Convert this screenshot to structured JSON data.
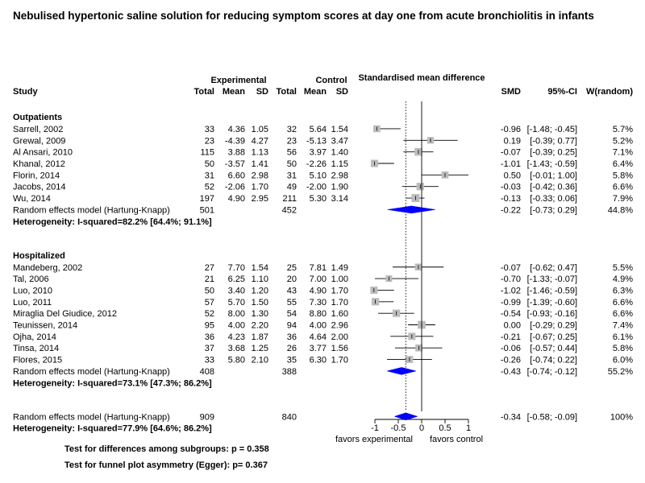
{
  "colors": {
    "text": "#000000",
    "grey": "#a0a0a0",
    "square": "#bcbcbc",
    "diamond": "#0000ff",
    "line": "#000000"
  },
  "chart_data": {
    "type": "forest",
    "title": "Nebulised hypertonic saline solution for reducing symptom scores at day one from acute bronchiolitis in infants",
    "headers": {
      "experimental": "Experimental",
      "control": "Control",
      "smd_group": "Standardised mean difference",
      "study": "Study",
      "total": "Total",
      "mean": "Mean",
      "sd": "SD",
      "smd": "SMD",
      "ci": "95%-CI",
      "weight": "W(random)"
    },
    "xaxis": {
      "ticks": [
        -1,
        -0.5,
        0,
        0.5,
        1
      ],
      "tick_labels": [
        "-1",
        "-0.5",
        "0",
        "0.5",
        "1"
      ],
      "xlim": [
        -1.0,
        1.0
      ],
      "label_left": "favors experimental",
      "label_right": "favors control",
      "reference_line": 0,
      "overall_line": -0.34
    },
    "subgroups": [
      {
        "name": "Outpatients",
        "studies": [
          {
            "study": "Sarrell, 2002",
            "e_total": "33",
            "e_mean": "4.36",
            "e_sd": "1.05",
            "c_total": "32",
            "c_mean": "5.64",
            "c_sd": "1.54",
            "smd": -0.96,
            "lo": -1.48,
            "hi": -0.45,
            "smd_txt": "-0.96",
            "ci_txt": "[-1.48; -0.45]",
            "weight": 5.7,
            "weight_txt": "5.7%"
          },
          {
            "study": "Grewal, 2009",
            "e_total": "23",
            "e_mean": "-4.39",
            "e_sd": "4.27",
            "c_total": "23",
            "c_mean": "-5.13",
            "c_sd": "3.47",
            "smd": 0.19,
            "lo": -0.39,
            "hi": 0.77,
            "smd_txt": "0.19",
            "ci_txt": "[-0.39; 0.77]",
            "weight": 5.2,
            "weight_txt": "5.2%"
          },
          {
            "study": "Al Ansari, 2010",
            "e_total": "115",
            "e_mean": "3.88",
            "e_sd": "1.13",
            "c_total": "56",
            "c_mean": "3.97",
            "c_sd": "1.40",
            "smd": -0.07,
            "lo": -0.39,
            "hi": 0.25,
            "smd_txt": "-0.07",
            "ci_txt": "[-0.39; 0.25]",
            "weight": 7.1,
            "weight_txt": "7.1%"
          },
          {
            "study": "Khanal, 2012",
            "e_total": "50",
            "e_mean": "-3.57",
            "e_sd": "1.41",
            "c_total": "50",
            "c_mean": "-2.26",
            "c_sd": "1.15",
            "smd": -1.01,
            "lo": -1.43,
            "hi": -0.59,
            "smd_txt": "-1.01",
            "ci_txt": "[-1.43; -0.59]",
            "weight": 6.4,
            "weight_txt": "6.4%"
          },
          {
            "study": "Florin, 2014",
            "e_total": "31",
            "e_mean": "6.60",
            "e_sd": "2.98",
            "c_total": "31",
            "c_mean": "5.10",
            "c_sd": "2.98",
            "smd": 0.5,
            "lo": -0.01,
            "hi": 1.0,
            "smd_txt": "0.50",
            "ci_txt": "[-0.01; 1.00]",
            "weight": 5.8,
            "weight_txt": "5.8%"
          },
          {
            "study": "Jacobs, 2014",
            "e_total": "52",
            "e_mean": "-2.06",
            "e_sd": "1.70",
            "c_total": "49",
            "c_mean": "-2.00",
            "c_sd": "1.90",
            "smd": -0.03,
            "lo": -0.42,
            "hi": 0.36,
            "smd_txt": "-0.03",
            "ci_txt": "[-0.42; 0.36]",
            "weight": 6.6,
            "weight_txt": "6.6%"
          },
          {
            "study": "Wu, 2014",
            "e_total": "197",
            "e_mean": "4.90",
            "e_sd": "2.95",
            "c_total": "211",
            "c_mean": "5.30",
            "c_sd": "3.14",
            "smd": -0.13,
            "lo": -0.33,
            "hi": 0.06,
            "smd_txt": "-0.13",
            "ci_txt": "[-0.33; 0.06]",
            "weight": 7.9,
            "weight_txt": "7.9%"
          }
        ],
        "pooled": {
          "label": "Random effects model  (Hartung-Knapp)",
          "e_total": "501",
          "c_total": "452",
          "smd": -0.22,
          "lo": -0.73,
          "hi": 0.29,
          "smd_txt": "-0.22",
          "ci_txt": "[-0.73; 0.29]",
          "weight_txt": "44.8%"
        },
        "heterogeneity": "Heterogeneity: I-squared=82.2% [64.4%; 91.1%]"
      },
      {
        "name": "Hospitalized",
        "studies": [
          {
            "study": "Mandeberg, 2002",
            "e_total": "27",
            "e_mean": "7.70",
            "e_sd": "1.54",
            "c_total": "25",
            "c_mean": "7.81",
            "c_sd": "1.49",
            "smd": -0.07,
            "lo": -0.62,
            "hi": 0.47,
            "smd_txt": "-0.07",
            "ci_txt": "[-0.62; 0.47]",
            "weight": 5.5,
            "weight_txt": "5.5%"
          },
          {
            "study": "Tal, 2006",
            "e_total": "21",
            "e_mean": "6.25",
            "e_sd": "1.10",
            "c_total": "20",
            "c_mean": "7.00",
            "c_sd": "1.00",
            "smd": -0.7,
            "lo": -1.33,
            "hi": -0.07,
            "smd_txt": "-0.70",
            "ci_txt": "[-1.33; -0.07]",
            "weight": 4.9,
            "weight_txt": "4.9%"
          },
          {
            "study": "Luo, 2010",
            "e_total": "50",
            "e_mean": "3.40",
            "e_sd": "1.20",
            "c_total": "43",
            "c_mean": "4.90",
            "c_sd": "1.70",
            "smd": -1.02,
            "lo": -1.46,
            "hi": -0.59,
            "smd_txt": "-1.02",
            "ci_txt": "[-1.46; -0.59]",
            "weight": 6.3,
            "weight_txt": "6.3%"
          },
          {
            "study": "Luo, 2011",
            "e_total": "57",
            "e_mean": "5.70",
            "e_sd": "1.50",
            "c_total": "55",
            "c_mean": "7.30",
            "c_sd": "1.70",
            "smd": -0.99,
            "lo": -1.39,
            "hi": -0.6,
            "smd_txt": "-0.99",
            "ci_txt": "[-1.39; -0.60]",
            "weight": 6.6,
            "weight_txt": "6.6%"
          },
          {
            "study": "Miraglia Del Giudice, 2012",
            "e_total": "52",
            "e_mean": "8.00",
            "e_sd": "1.30",
            "c_total": "54",
            "c_mean": "8.80",
            "c_sd": "1.60",
            "smd": -0.54,
            "lo": -0.93,
            "hi": -0.16,
            "smd_txt": "-0.54",
            "ci_txt": "[-0.93; -0.16]",
            "weight": 6.6,
            "weight_txt": "6.6%"
          },
          {
            "study": "Teunissen, 2014",
            "e_total": "95",
            "e_mean": "4.00",
            "e_sd": "2.20",
            "c_total": "94",
            "c_mean": "4.00",
            "c_sd": "2.96",
            "smd": 0.0,
            "lo": -0.29,
            "hi": 0.29,
            "smd_txt": "0.00",
            "ci_txt": "[-0.29; 0.29]",
            "weight": 7.4,
            "weight_txt": "7.4%"
          },
          {
            "study": "Ojha, 2014",
            "e_total": "36",
            "e_mean": "4.23",
            "e_sd": "1.87",
            "c_total": "36",
            "c_mean": "4.64",
            "c_sd": "2.00",
            "smd": -0.21,
            "lo": -0.67,
            "hi": 0.25,
            "smd_txt": "-0.21",
            "ci_txt": "[-0.67; 0.25]",
            "weight": 6.1,
            "weight_txt": "6.1%"
          },
          {
            "study": "Tinsa, 2014",
            "e_total": "37",
            "e_mean": "3.68",
            "e_sd": "1.25",
            "c_total": "26",
            "c_mean": "3.77",
            "c_sd": "1.56",
            "smd": -0.06,
            "lo": -0.57,
            "hi": 0.44,
            "smd_txt": "-0.06",
            "ci_txt": "[-0.57; 0.44]",
            "weight": 5.8,
            "weight_txt": "5.8%"
          },
          {
            "study": "Flores, 2015",
            "e_total": "33",
            "e_mean": "5.80",
            "e_sd": "2.10",
            "c_total": "35",
            "c_mean": "6.30",
            "c_sd": "1.70",
            "smd": -0.26,
            "lo": -0.74,
            "hi": 0.22,
            "smd_txt": "-0.26",
            "ci_txt": "[-0.74; 0.22]",
            "weight": 6.0,
            "weight_txt": "6.0%"
          }
        ],
        "pooled": {
          "label": "Random effects model  (Hartung-Knapp)",
          "e_total": "408",
          "c_total": "388",
          "smd": -0.43,
          "lo": -0.74,
          "hi": -0.12,
          "smd_txt": "-0.43",
          "ci_txt": "[-0.74; -0.12]",
          "weight_txt": "55.2%"
        },
        "heterogeneity": "Heterogeneity: I-squared=73.1% [47.3%; 86.2%]"
      }
    ],
    "overall": {
      "label": "Random effects model  (Hartung-Knapp)",
      "e_total": "909",
      "c_total": "840",
      "smd": -0.34,
      "lo": -0.58,
      "hi": -0.09,
      "smd_txt": "-0.34",
      "ci_txt": "[-0.58; -0.09]",
      "weight_txt": "100%"
    },
    "overall_heterogeneity": "Heterogeneity: I-squared=77.9% [64.6%; 86.2%]",
    "footnotes": [
      "Test for differences among subgroups: p = 0.358",
      "Test for funnel plot asymmetry (Egger): p= 0.367"
    ]
  }
}
